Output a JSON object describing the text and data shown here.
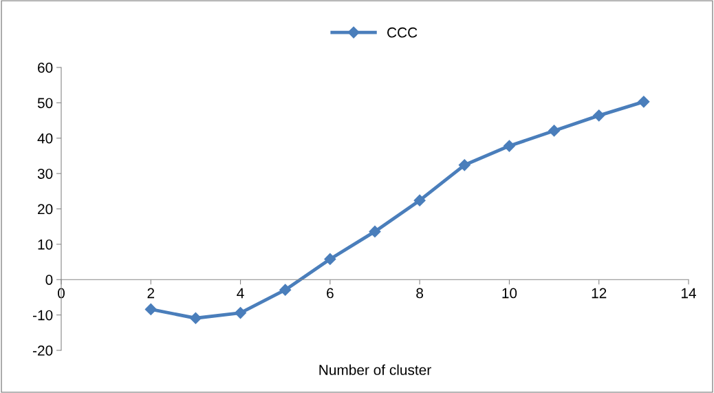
{
  "chart_data": {
    "type": "line",
    "xlabel": "Number of cluster",
    "x": [
      2,
      3,
      4,
      5,
      6,
      7,
      8,
      9,
      10,
      11,
      12,
      13
    ],
    "series": [
      {
        "name": "CCC",
        "color": "#4a7ebb",
        "values": [
          -8.4,
          -10.9,
          -9.4,
          -2.9,
          5.8,
          13.6,
          22.4,
          32.4,
          37.8,
          42.1,
          46.4,
          50.3
        ]
      }
    ],
    "xlim": [
      0,
      14
    ],
    "xticks": [
      0,
      2,
      4,
      6,
      8,
      10,
      12,
      14
    ],
    "ylim": [
      -20,
      60
    ],
    "yticks": [
      -20,
      -10,
      0,
      10,
      20,
      30,
      40,
      50,
      60
    ],
    "marker": "diamond",
    "line_style": "solid",
    "legend": "top",
    "grid": false
  }
}
